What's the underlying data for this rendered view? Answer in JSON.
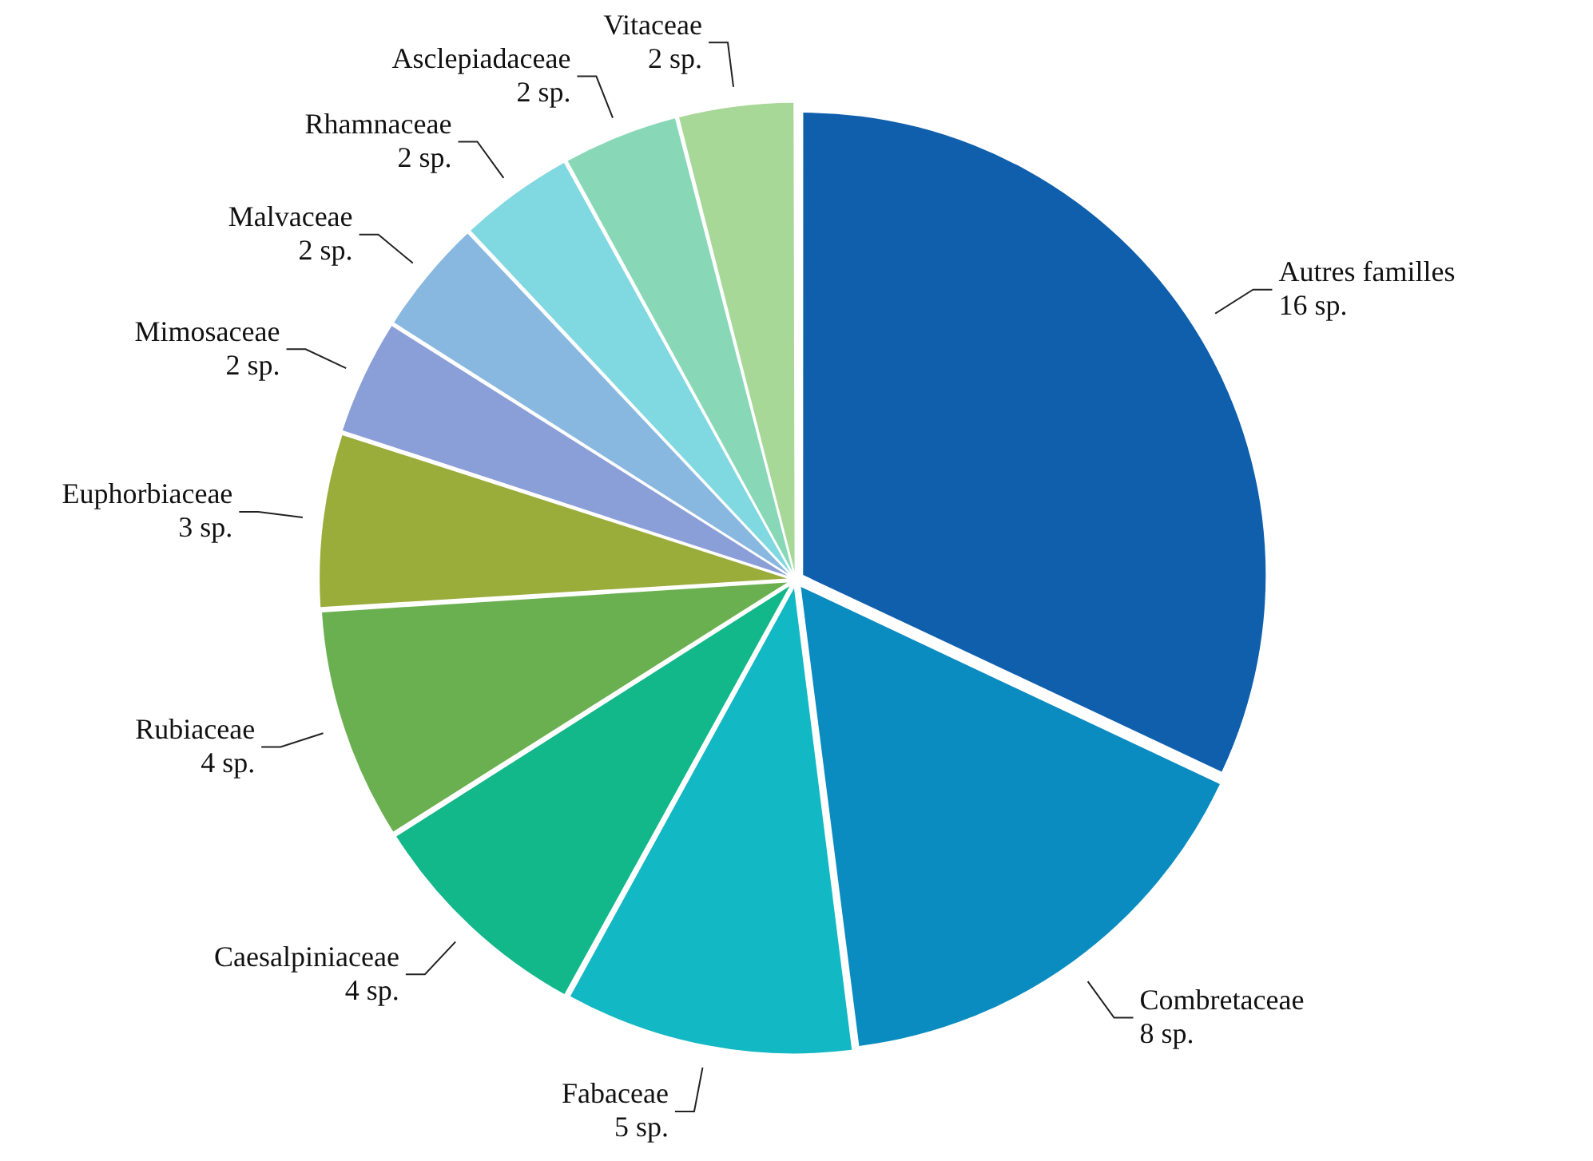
{
  "chart_data": {
    "type": "pie",
    "categories": [
      "Autres familles",
      "Combretaceae",
      "Fabaceae",
      "Caesalpiniaceae",
      "Rubiaceae",
      "Euphorbiaceae",
      "Mimosaceae",
      "Malvaceae",
      "Rhamnaceae",
      "Asclepiadaceae",
      "Vitaceae"
    ],
    "values": [
      16,
      8,
      5,
      4,
      4,
      3,
      2,
      2,
      2,
      2,
      2
    ],
    "value_labels": [
      "16 sp.",
      "8 sp.",
      "5 sp.",
      "4 sp.",
      "4 sp.",
      "3 sp.",
      "2 sp.",
      "2 sp.",
      "2 sp.",
      "2 sp.",
      "2 sp."
    ],
    "colors": [
      "#0f5fad",
      "#0a8cc0",
      "#12b8c4",
      "#12b88a",
      "#6ab050",
      "#9aac3a",
      "#8a9ed8",
      "#88b8e0",
      "#80d8e0",
      "#88d8b8",
      "#a8d898"
    ],
    "legend": false
  }
}
